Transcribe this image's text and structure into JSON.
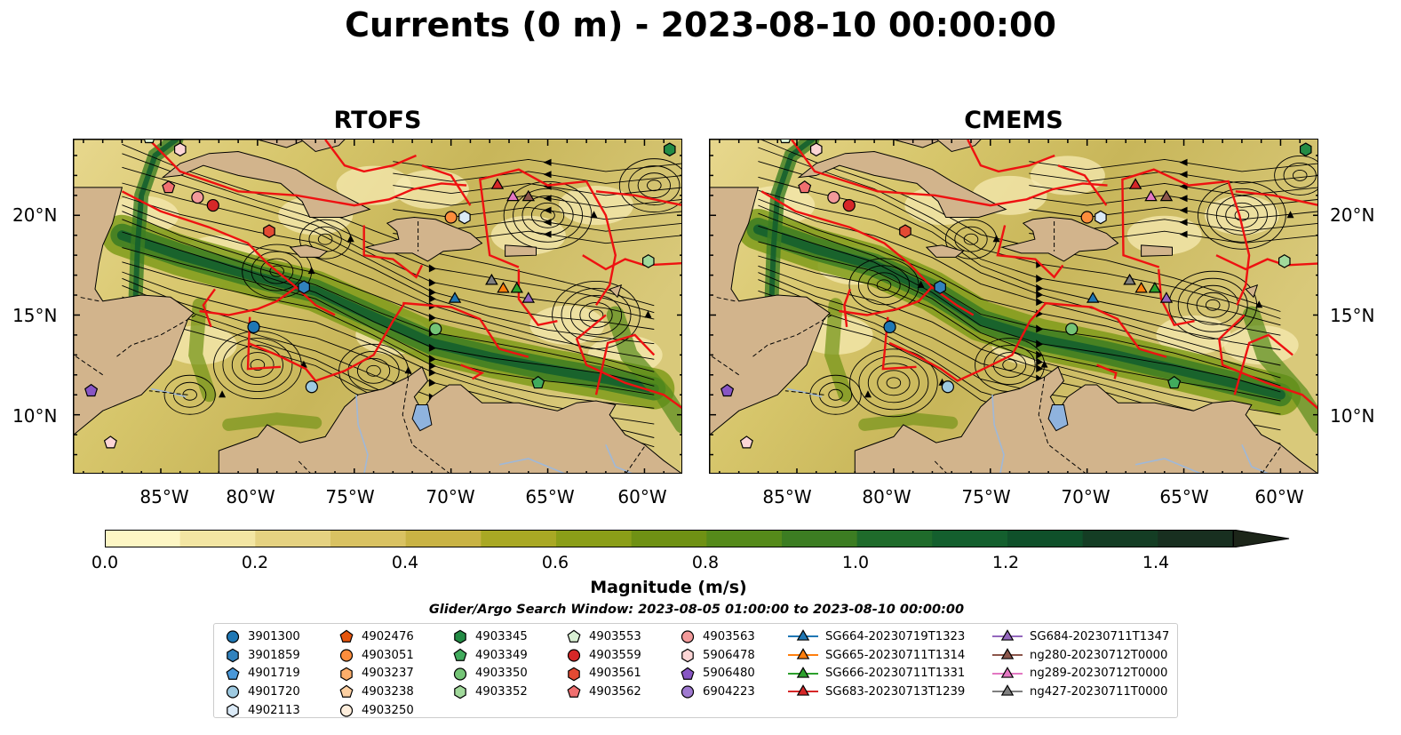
{
  "title": "Currents (0 m) - 2023-08-10 00:00:00",
  "panels": [
    {
      "title": "RTOFS"
    },
    {
      "title": "CMEMS"
    }
  ],
  "map_extent": {
    "lon_min": -89.5,
    "lon_max": -58.0,
    "lat_min": 7.0,
    "lat_max": 23.8
  },
  "lat_ticks": [
    "20°N",
    "15°N",
    "10°N"
  ],
  "lon_ticks": [
    "85°W",
    "80°W",
    "75°W",
    "70°W",
    "65°W",
    "60°W"
  ],
  "colorbar": {
    "label": "Magnitude (m/s)",
    "ticks": [
      "0.0",
      "0.2",
      "0.4",
      "0.6",
      "0.8",
      "1.0",
      "1.2",
      "1.4"
    ],
    "colors": [
      "#fdf6c4",
      "#f3e6a3",
      "#e5d281",
      "#d9c262",
      "#c9b344",
      "#a9a824",
      "#8b9e18",
      "#6f9114",
      "#558a1a",
      "#3c7d22",
      "#1f6b2b",
      "#145f2e",
      "#0f502a",
      "#143d24",
      "#182f20",
      "#1c2519"
    ],
    "extend": "max"
  },
  "search_window": "Glider/Argo Search Window: 2023-08-05 01:00:00 to 2023-08-10 00:00:00",
  "legend": {
    "columns": [
      [
        {
          "label": "3901300",
          "marker": "circle",
          "color": "#1f77b4"
        },
        {
          "label": "3901859",
          "marker": "hexagon",
          "color": "#3182bd"
        },
        {
          "label": "4901719",
          "marker": "pentagon",
          "color": "#4a98d8"
        },
        {
          "label": "4901720",
          "marker": "circle",
          "color": "#9ecae1"
        },
        {
          "label": "4902113",
          "marker": "hexagon",
          "color": "#dbeaf7"
        }
      ],
      [
        {
          "label": "4902476",
          "marker": "pentagon",
          "color": "#e6550d"
        },
        {
          "label": "4903051",
          "marker": "circle",
          "color": "#fd8d3c"
        },
        {
          "label": "4903237",
          "marker": "hexagon",
          "color": "#fdae6b"
        },
        {
          "label": "4903238",
          "marker": "pentagon",
          "color": "#fdd0a2"
        },
        {
          "label": "4903250",
          "marker": "circle",
          "color": "#feeedc"
        }
      ],
      [
        {
          "label": "4903345",
          "marker": "hexagon",
          "color": "#238b45"
        },
        {
          "label": "4903349",
          "marker": "pentagon",
          "color": "#41ab5d"
        },
        {
          "label": "4903350",
          "marker": "circle",
          "color": "#74c476"
        },
        {
          "label": "4903352",
          "marker": "hexagon",
          "color": "#a1d99b"
        }
      ],
      [
        {
          "label": "4903553",
          "marker": "pentagon",
          "color": "#d9f0d3"
        },
        {
          "label": "4903559",
          "marker": "circle",
          "color": "#d62728"
        },
        {
          "label": "4903561",
          "marker": "hexagon",
          "color": "#e34a33"
        },
        {
          "label": "4903562",
          "marker": "pentagon",
          "color": "#f07070"
        }
      ],
      [
        {
          "label": "4903563",
          "marker": "circle",
          "color": "#f29a9a"
        },
        {
          "label": "5906478",
          "marker": "hexagon",
          "color": "#fcd5d5"
        },
        {
          "label": "5906480",
          "marker": "pentagon",
          "color": "#8856c4"
        },
        {
          "label": "6904223",
          "marker": "circle",
          "color": "#a07ad1"
        }
      ],
      [
        {
          "label": "SG664-20230719T1323",
          "marker": "triangle",
          "color": "#1f77b4"
        },
        {
          "label": "SG665-20230711T1314",
          "marker": "triangle",
          "color": "#ff7f0e"
        },
        {
          "label": "SG666-20230711T1331",
          "marker": "triangle",
          "color": "#2ca02c"
        },
        {
          "label": "SG683-20230713T1239",
          "marker": "triangle",
          "color": "#d62728"
        }
      ],
      [
        {
          "label": "SG684-20230711T1347",
          "marker": "triangle",
          "color": "#9467bd"
        },
        {
          "label": "ng280-20230712T0000",
          "marker": "triangle",
          "color": "#8c564b"
        },
        {
          "label": "ng289-20230712T0000",
          "marker": "triangle",
          "color": "#e377c2"
        },
        {
          "label": "ng427-20230711T0000",
          "marker": "triangle",
          "color": "#7f7f7f"
        }
      ]
    ]
  },
  "platforms": [
    {
      "id": "3901300",
      "marker": "circle",
      "color": "#1f77b4",
      "lon": -80.2,
      "lat": 14.4
    },
    {
      "id": "3901859",
      "marker": "hexagon",
      "color": "#3182bd",
      "lon": -77.6,
      "lat": 16.4
    },
    {
      "id": "4901720",
      "marker": "circle",
      "color": "#9ecae1",
      "lon": -77.2,
      "lat": 11.4
    },
    {
      "id": "4902113",
      "marker": "hexagon",
      "color": "#dbeaf7",
      "lon": -69.3,
      "lat": 19.9
    },
    {
      "id": "4903051",
      "marker": "circle",
      "color": "#fd8d3c",
      "lon": -70.0,
      "lat": 19.9
    },
    {
      "id": "4903345",
      "marker": "hexagon",
      "color": "#238b45",
      "lon": -58.7,
      "lat": 23.3
    },
    {
      "id": "4903349",
      "marker": "pentagon",
      "color": "#41ab5d",
      "lon": -65.5,
      "lat": 11.6
    },
    {
      "id": "4903350",
      "marker": "circle",
      "color": "#74c476",
      "lon": -70.8,
      "lat": 14.3
    },
    {
      "id": "4903352",
      "marker": "hexagon",
      "color": "#a1d99b",
      "lon": -59.8,
      "lat": 17.7
    },
    {
      "id": "4903553",
      "marker": "pentagon",
      "color": "#d9f0d3",
      "lon": -85.6,
      "lat": 23.9
    },
    {
      "id": "4903559",
      "marker": "circle",
      "color": "#d62728",
      "lon": -82.3,
      "lat": 20.5
    },
    {
      "id": "4903561",
      "marker": "hexagon",
      "color": "#e34a33",
      "lon": -79.4,
      "lat": 19.2
    },
    {
      "id": "4903562",
      "marker": "pentagon",
      "color": "#f07070",
      "lon": -84.6,
      "lat": 21.4
    },
    {
      "id": "4903563",
      "marker": "circle",
      "color": "#f29a9a",
      "lon": -83.1,
      "lat": 20.9
    },
    {
      "id": "5906478",
      "marker": "hexagon",
      "color": "#fcd5d5",
      "lon": -84.0,
      "lat": 23.3
    },
    {
      "id": "5906478b",
      "marker": "pentagon",
      "color": "#fcd5d5",
      "lon": -87.6,
      "lat": 8.6
    },
    {
      "id": "5906480",
      "marker": "pentagon",
      "color": "#8856c4",
      "lon": -88.6,
      "lat": 11.2
    },
    {
      "id": "SG664",
      "marker": "triangle",
      "color": "#1f77b4",
      "lon": -69.8,
      "lat": 15.8
    },
    {
      "id": "SG665",
      "marker": "triangle",
      "color": "#ff7f0e",
      "lon": -67.3,
      "lat": 16.3
    },
    {
      "id": "SG666",
      "marker": "triangle",
      "color": "#2ca02c",
      "lon": -66.6,
      "lat": 16.3
    },
    {
      "id": "SG666b",
      "marker": "triangle",
      "color": "#2ca02c",
      "lon": -67.9,
      "lat": 16.7
    },
    {
      "id": "SG683",
      "marker": "triangle",
      "color": "#d62728",
      "lon": -67.6,
      "lat": 21.5
    },
    {
      "id": "SG684",
      "marker": "triangle",
      "color": "#9467bd",
      "lon": -66.0,
      "lat": 15.8
    },
    {
      "id": "ng280",
      "marker": "triangle",
      "color": "#8c564b",
      "lon": -66.0,
      "lat": 20.9
    },
    {
      "id": "ng289",
      "marker": "triangle",
      "color": "#e377c2",
      "lon": -66.8,
      "lat": 20.9
    },
    {
      "id": "ng427",
      "marker": "triangle",
      "color": "#7f7f7f",
      "lon": -67.9,
      "lat": 16.7
    }
  ]
}
